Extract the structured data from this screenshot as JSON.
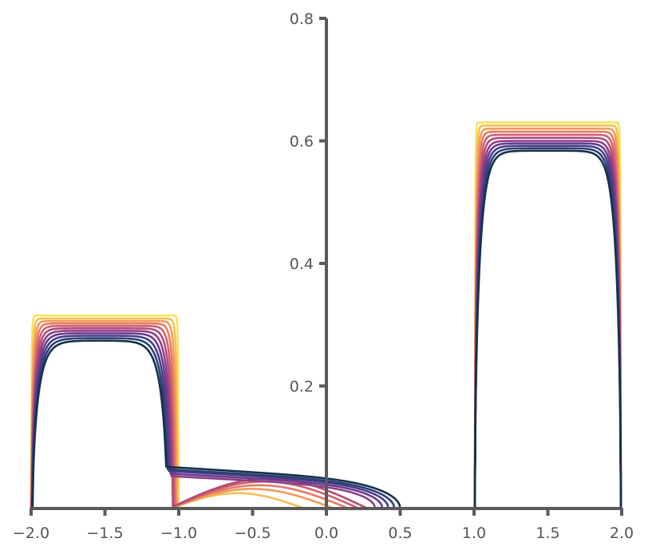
{
  "chart_data": {
    "type": "line",
    "title": "",
    "xlabel": "",
    "ylabel": "",
    "xlim": [
      -2.0,
      2.0
    ],
    "ylim": [
      0.0,
      0.8
    ],
    "x_ticks": [
      -2.0,
      -1.5,
      -1.0,
      -0.5,
      0.0,
      0.5,
      1.0,
      1.5,
      2.0
    ],
    "x_tick_labels": [
      "−2.0",
      "−1.5",
      "−1.0",
      "−0.5",
      "0.0",
      "0.5",
      "1.0",
      "1.5",
      "2.0"
    ],
    "y_ticks": [
      0.2,
      0.4,
      0.6,
      0.8
    ],
    "y_tick_labels": [
      "0.2",
      "0.4",
      "0.6",
      "0.8"
    ],
    "grid": false,
    "legend": "none",
    "y_axis_position_x": 0.0,
    "colormap": [
      "#f5e35a",
      "#f6bf52",
      "#f39a5b",
      "#e57a64",
      "#cf5f6e",
      "#b24b79",
      "#8f3e86",
      "#6b3a8e",
      "#473d8a",
      "#2c3f74",
      "#14314a"
    ],
    "series": [
      {
        "values_block1": 0.315,
        "values_block3": 0.63,
        "right_tail_end": -0.85
      },
      {
        "values_block1": 0.31,
        "values_block3": 0.625,
        "right_tail_end": -0.15
      },
      {
        "values_block1": 0.306,
        "values_block3": 0.62,
        "right_tail_end": 0.05
      },
      {
        "values_block1": 0.302,
        "values_block3": 0.615,
        "right_tail_end": 0.15
      },
      {
        "values_block1": 0.298,
        "values_block3": 0.61,
        "right_tail_end": 0.22
      },
      {
        "values_block1": 0.294,
        "values_block3": 0.605,
        "right_tail_end": 0.28
      },
      {
        "values_block1": 0.29,
        "values_block3": 0.6,
        "right_tail_end": 0.33
      },
      {
        "values_block1": 0.286,
        "values_block3": 0.596,
        "right_tail_end": 0.38
      },
      {
        "values_block1": 0.282,
        "values_block3": 0.592,
        "right_tail_end": 0.42
      },
      {
        "values_block1": 0.278,
        "values_block3": 0.588,
        "right_tail_end": 0.46
      },
      {
        "values_block1": 0.274,
        "values_block3": 0.584,
        "right_tail_end": 0.5
      }
    ],
    "tail_peak_values": [
      0.0,
      0.025,
      0.032,
      0.038,
      0.044,
      0.049,
      0.053,
      0.057,
      0.061,
      0.064,
      0.068
    ],
    "initial_blocks": [
      {
        "x_start": -2.0,
        "x_end": -1.0,
        "height": 0.315
      },
      {
        "x_start": 1.0,
        "x_end": 2.0,
        "height": 0.63
      }
    ]
  }
}
